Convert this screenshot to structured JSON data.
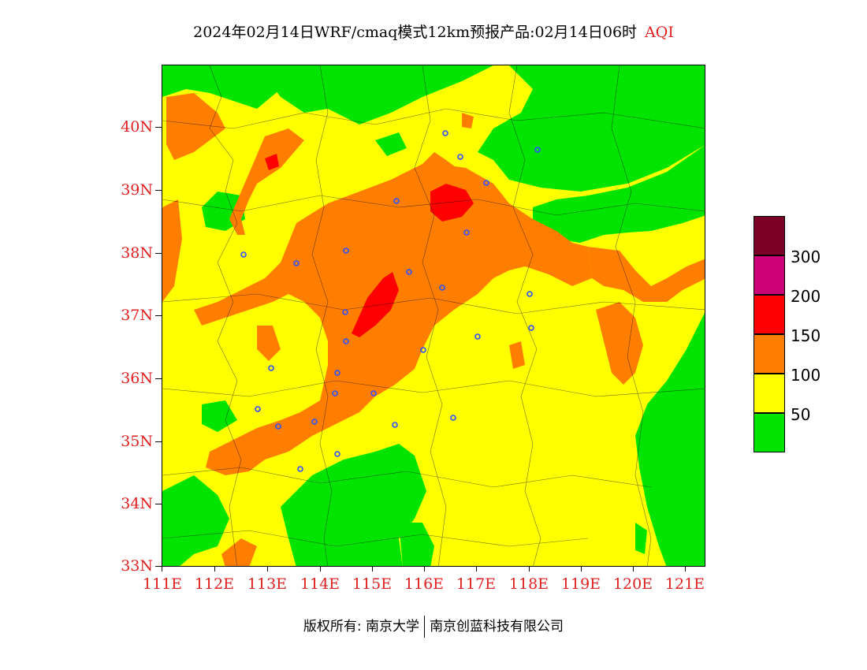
{
  "title": {
    "main": "2024年02月14日WRF/cmaq模式12km预报产品:02月14日06时",
    "variable": "AQI"
  },
  "map": {
    "lat_labels": [
      "40N",
      "39N",
      "38N",
      "37N",
      "36N",
      "35N",
      "34N",
      "33N"
    ],
    "lon_labels": [
      "111E",
      "112E",
      "113E",
      "114E",
      "115E",
      "116E",
      "117E",
      "118E",
      "119E",
      "120E",
      "121E"
    ],
    "extent": {
      "lon_min": 111,
      "lon_max": 121.2,
      "lat_min": 33,
      "lat_max": 41
    }
  },
  "legend": {
    "labels": [
      "300",
      "200",
      "150",
      "100",
      "50"
    ],
    "colors": {
      "very_hazardous": "#7b0026",
      "hazardous": "#cc0077",
      "unhealthy": "#ff0000",
      "sensitive": "#ff7e00",
      "moderate": "#ffff00",
      "good": "#00e400"
    }
  },
  "footer": {
    "left": "版权所有: 南京大学",
    "right": "南京创蓝科技有限公司"
  }
}
